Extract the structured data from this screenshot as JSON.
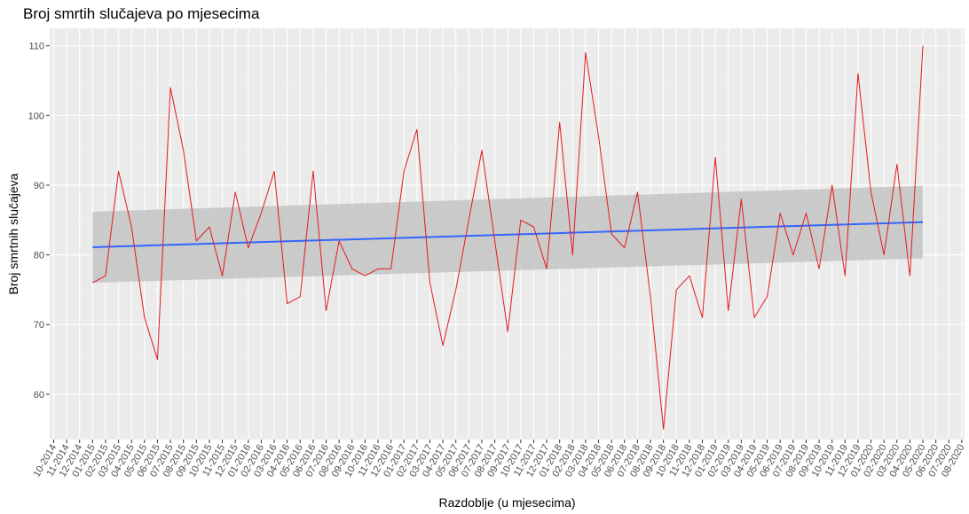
{
  "chart_data": {
    "type": "line",
    "title": "Broj smrtih slučajeva po mjesecima",
    "xlabel": "Razdoblje (u mjesecima)",
    "ylabel": "Broj smrtnih slučajeva",
    "x_tick_labels": [
      "10-2014",
      "11-2014",
      "12-2014",
      "01-2015",
      "02-2015",
      "03-2015",
      "04-2015",
      "05-2015",
      "06-2015",
      "07-2015",
      "08-2015",
      "09-2015",
      "10-2015",
      "11-2015",
      "12-2015",
      "01-2016",
      "02-2016",
      "03-2016",
      "04-2016",
      "05-2016",
      "06-2016",
      "07-2016",
      "08-2016",
      "09-2016",
      "10-2016",
      "11-2016",
      "12-2016",
      "01-2017",
      "02-2017",
      "03-2017",
      "04-2017",
      "05-2017",
      "06-2017",
      "07-2017",
      "08-2017",
      "09-2017",
      "10-2017",
      "11-2017",
      "12-2017",
      "01-2018",
      "02-2018",
      "03-2018",
      "04-2018",
      "05-2018",
      "06-2018",
      "07-2018",
      "08-2018",
      "09-2018",
      "10-2018",
      "11-2018",
      "12-2018",
      "01-2019",
      "02-2019",
      "03-2019",
      "04-2019",
      "05-2019",
      "06-2019",
      "07-2019",
      "08-2019",
      "09-2019",
      "10-2019",
      "11-2019",
      "12-2019",
      "01-2020",
      "02-2020",
      "03-2020",
      "04-2020",
      "05-2020",
      "06-2020",
      "07-2020",
      "08-2020"
    ],
    "y_ticks": [
      60,
      70,
      80,
      90,
      100,
      110
    ],
    "ylim": [
      53.5,
      112.5
    ],
    "grid": true,
    "series": [
      {
        "x": [
          "01-2015",
          "02-2015",
          "03-2015",
          "04-2015",
          "05-2015",
          "06-2015",
          "07-2015",
          "08-2015",
          "09-2015",
          "10-2015",
          "11-2015",
          "12-2015",
          "01-2016",
          "02-2016",
          "03-2016",
          "04-2016",
          "05-2016",
          "06-2016",
          "07-2016",
          "08-2016",
          "09-2016",
          "10-2016",
          "11-2016",
          "12-2016",
          "01-2017",
          "02-2017",
          "03-2017",
          "04-2017",
          "05-2017",
          "06-2017",
          "07-2017",
          "08-2017",
          "09-2017",
          "10-2017",
          "11-2017",
          "12-2017",
          "01-2018",
          "02-2018",
          "03-2018",
          "04-2018",
          "05-2018",
          "06-2018",
          "07-2018",
          "08-2018",
          "09-2018",
          "10-2018",
          "11-2018",
          "12-2018",
          "01-2019",
          "02-2019",
          "03-2019",
          "04-2019",
          "05-2019",
          "06-2019",
          "07-2019",
          "08-2019",
          "09-2019",
          "10-2019",
          "11-2019",
          "12-2019",
          "01-2020",
          "02-2020",
          "03-2020",
          "04-2020",
          "05-2020"
        ],
        "values": [
          76,
          77,
          92,
          84,
          71,
          65,
          104,
          95,
          82,
          84,
          77,
          89,
          81,
          86,
          92,
          73,
          74,
          92,
          72,
          82,
          78,
          77,
          78,
          78,
          92,
          98,
          76,
          67,
          75,
          85,
          95,
          82,
          69,
          85,
          84,
          78,
          99,
          80,
          109,
          97,
          83,
          81,
          89,
          74,
          55,
          75,
          77,
          71,
          94,
          72,
          88,
          71,
          74,
          86,
          80,
          86,
          78,
          90,
          77,
          106,
          89,
          80,
          93,
          77,
          110
        ],
        "color": "#e41a1c"
      }
    ],
    "trend": {
      "start_value": 81.1,
      "end_value": 84.7,
      "ci_start": [
        76.0,
        86.2
      ],
      "ci_end": [
        79.5,
        89.9
      ],
      "color": "#3366ff",
      "ci_color": "#c6c6c6"
    },
    "panel_background": "#ebebeb"
  }
}
